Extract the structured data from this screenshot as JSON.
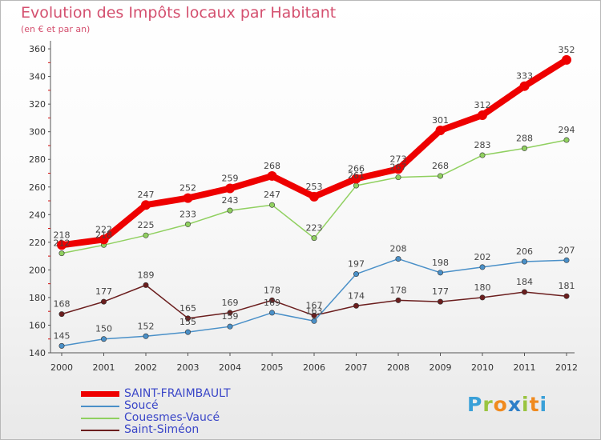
{
  "title": "Evolution des Impôts locaux par Habitant",
  "subtitle": "(en € et par an)",
  "logo_text": "Proxiti",
  "chart_data": {
    "type": "line",
    "x": [
      "2000",
      "2001",
      "2002",
      "2003",
      "2004",
      "2005",
      "2006",
      "2007",
      "2008",
      "2009",
      "2010",
      "2011",
      "2012"
    ],
    "ylim": [
      140,
      360
    ],
    "yticks": [
      140,
      160,
      180,
      200,
      220,
      240,
      260,
      280,
      300,
      320,
      340,
      360
    ],
    "grid": false,
    "legend_position": "bottom-left",
    "series": [
      {
        "name": "SAINT-FRAIMBAULT",
        "color": "#ee0000",
        "values": [
          218,
          222,
          247,
          252,
          259,
          268,
          253,
          266,
          273,
          301,
          312,
          333,
          352
        ]
      },
      {
        "name": "Soucé",
        "color": "#4a90c8",
        "values": [
          145,
          150,
          152,
          155,
          159,
          169,
          163,
          197,
          208,
          198,
          202,
          206,
          207
        ]
      },
      {
        "name": "Couesmes-Vaucé",
        "color": "#90d060",
        "values": [
          212,
          218,
          225,
          233,
          243,
          247,
          223,
          261,
          267,
          268,
          283,
          288,
          294
        ]
      },
      {
        "name": "Saint-Siméon",
        "color": "#6b1e1e",
        "values": [
          168,
          177,
          189,
          165,
          169,
          178,
          167,
          174,
          178,
          177,
          180,
          184,
          181
        ]
      }
    ]
  }
}
